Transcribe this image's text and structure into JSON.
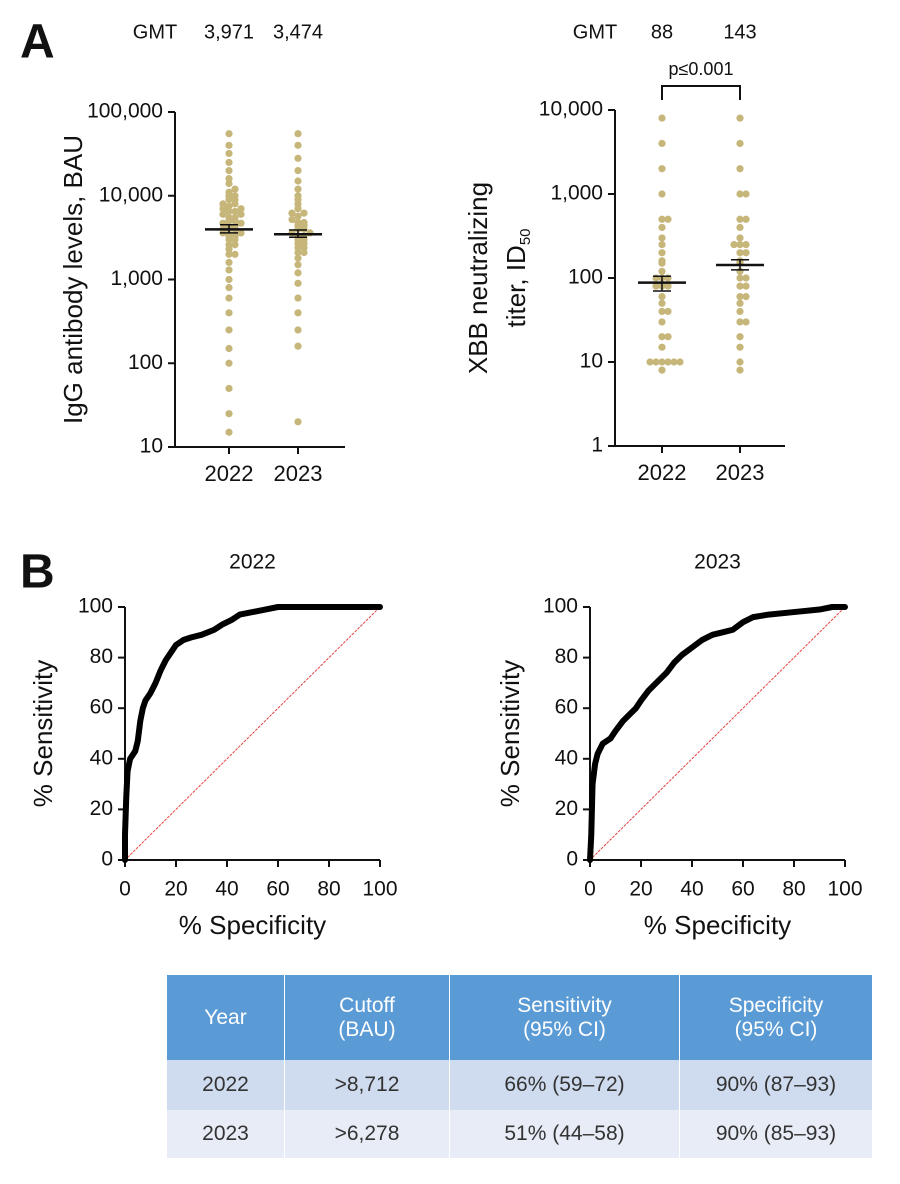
{
  "panel_labels": [
    "A",
    "B"
  ],
  "chart_data": [
    {
      "type": "beeswarm",
      "gmt_label": "GMT",
      "ylabel": "IgG antibody levels, BAU",
      "log_scale": true,
      "color": "#c6b67a",
      "categories": [
        "2022",
        "2023"
      ],
      "gmt": [
        3971,
        3474
      ],
      "gmt_labels": [
        "3,971",
        "3,474"
      ],
      "ci": [
        [
          3600,
          4500
        ],
        [
          3200,
          3900
        ]
      ],
      "ylim": [
        10,
        100000
      ],
      "yticks": [
        10,
        100,
        {
          "value": 1000,
          "label": "1,000"
        },
        {
          "value": 10000,
          "label": "10,000"
        },
        {
          "value": 100000,
          "label": "100,000"
        }
      ],
      "values": [
        [
          15,
          25,
          50,
          100,
          150,
          250,
          400,
          600,
          800,
          1000,
          1300,
          1600,
          2000,
          2000,
          2300,
          2600,
          2600,
          3000,
          3000,
          3300,
          3300,
          3600,
          3600,
          4000,
          4000,
          4000,
          4300,
          4300,
          4700,
          4700,
          5000,
          5000,
          5500,
          5500,
          6000,
          6000,
          6500,
          6500,
          7000,
          7000,
          7500,
          8000,
          8000,
          9000,
          9000,
          10000,
          10000,
          11000,
          12000,
          14000,
          16000,
          20000,
          25000,
          32000,
          40000,
          55000
        ],
        [
          20,
          160,
          250,
          400,
          600,
          900,
          1200,
          1500,
          1800,
          2100,
          2100,
          2400,
          2400,
          2700,
          2700,
          3000,
          3000,
          3300,
          3300,
          3600,
          3600,
          4000,
          4000,
          4400,
          4400,
          4800,
          4800,
          5200,
          5700,
          6200,
          6200,
          7000,
          8000,
          9000,
          10000,
          12000,
          15000,
          20000,
          28000,
          40000,
          55000
        ]
      ]
    },
    {
      "type": "beeswarm",
      "gmt_label": "GMT",
      "ylabel_lines": [
        "XBB neutralizing",
        "titer,  ID"
      ],
      "ylabel_subscript": "50",
      "log_scale": true,
      "color": "#c6b67a",
      "annotation": "p≤0.001",
      "categories": [
        "2022",
        "2023"
      ],
      "gmt": [
        88,
        143
      ],
      "ci": [
        [
          70,
          105
        ],
        [
          125,
          165
        ]
      ],
      "ylim": [
        1,
        10000
      ],
      "yticks": [
        1,
        10,
        100,
        {
          "value": 1000,
          "label": "1,000"
        },
        {
          "value": 10000,
          "label": "10,000"
        }
      ],
      "values": [
        [
          8,
          10,
          10,
          10,
          10,
          10,
          10,
          15,
          20,
          20,
          30,
          40,
          40,
          50,
          60,
          80,
          80,
          80,
          100,
          100,
          100,
          120,
          150,
          160,
          200,
          250,
          300,
          400,
          500,
          500,
          1000,
          2000,
          4000,
          8000
        ],
        [
          8,
          10,
          15,
          20,
          30,
          30,
          40,
          50,
          60,
          60,
          80,
          80,
          100,
          100,
          120,
          150,
          160,
          200,
          200,
          250,
          250,
          250,
          300,
          400,
          500,
          500,
          1000,
          1000,
          2000,
          4000,
          8000
        ]
      ]
    },
    {
      "type": "line",
      "title": "2022",
      "xlabel": "% Specificity",
      "ylabel": "% Sensitivity",
      "xlim": [
        0,
        100
      ],
      "ylim": [
        0,
        100
      ],
      "xticks": [
        0,
        20,
        40,
        60,
        80,
        100
      ],
      "yticks": [
        0,
        20,
        40,
        60,
        80,
        100
      ],
      "series": [
        {
          "color": "#000000",
          "x": [
            0,
            0,
            0.5,
            1,
            2,
            4,
            5,
            6,
            7,
            8,
            10,
            12,
            14,
            16,
            18,
            20,
            23,
            26,
            30,
            35,
            38,
            42,
            45,
            50,
            55,
            60,
            100
          ],
          "values": [
            0,
            10,
            25,
            35,
            40,
            43,
            47,
            55,
            60,
            63,
            66,
            70,
            75,
            79,
            82,
            85,
            87,
            88,
            89,
            91,
            93,
            95,
            97,
            98,
            99,
            100,
            100
          ]
        },
        {
          "color": "#e8413c",
          "x": [
            0,
            100
          ],
          "values": [
            0,
            100
          ]
        }
      ]
    },
    {
      "type": "line",
      "title": "2023",
      "xlabel": "% Specificity",
      "ylabel": "% Sensitivity",
      "xlim": [
        0,
        100
      ],
      "ylim": [
        0,
        100
      ],
      "xticks": [
        0,
        20,
        40,
        60,
        80,
        100
      ],
      "yticks": [
        0,
        20,
        40,
        60,
        80,
        100
      ],
      "series": [
        {
          "color": "#000000",
          "x": [
            0,
            0.5,
            1,
            2,
            3,
            5,
            8,
            10,
            13,
            16,
            18,
            20,
            23,
            26,
            30,
            33,
            36,
            40,
            44,
            48,
            52,
            56,
            60,
            64,
            70,
            80,
            90,
            95,
            100
          ],
          "values": [
            0,
            10,
            30,
            38,
            42,
            46,
            48,
            51,
            55,
            58,
            60,
            63,
            67,
            70,
            74,
            78,
            81,
            84,
            87,
            89,
            90,
            91,
            94,
            96,
            97,
            98,
            99,
            100,
            100
          ]
        },
        {
          "color": "#e8413c",
          "x": [
            0,
            100
          ],
          "values": [
            0,
            100
          ]
        }
      ]
    }
  ],
  "table": {
    "header": [
      [
        "Year"
      ],
      [
        "Cutoff",
        "(BAU)"
      ],
      [
        "Sensitivity",
        "(95% CI)"
      ],
      [
        "Specificity",
        "(95% CI)"
      ]
    ],
    "rows": [
      [
        "2022",
        ">8,712",
        "66% (59–72)",
        "90% (87–93)"
      ],
      [
        "2023",
        ">6,278",
        "51% (44–58)",
        "90% (85–93)"
      ]
    ]
  }
}
